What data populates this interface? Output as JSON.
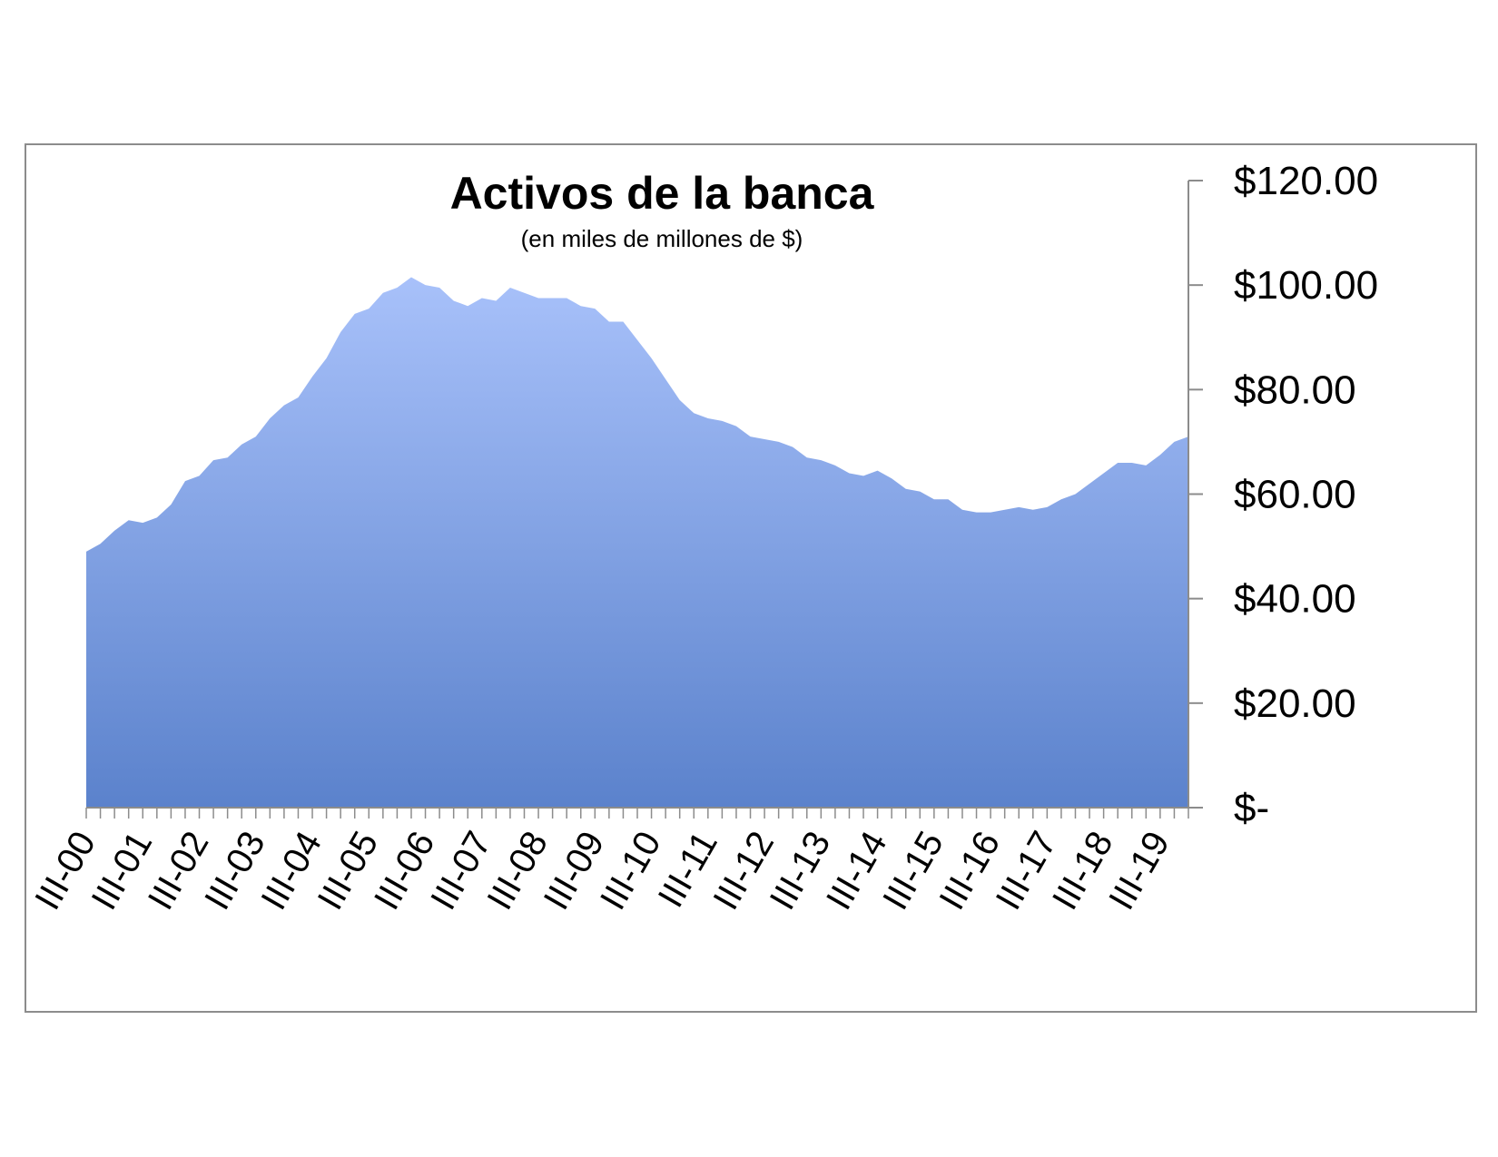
{
  "chart_data": {
    "type": "area",
    "title": "Activos de la banca",
    "subtitle": "(en miles de millones de $)",
    "ylim": [
      0,
      120
    ],
    "yticks": [
      {
        "value": 0,
        "label": "$-"
      },
      {
        "value": 20,
        "label": "$20.00"
      },
      {
        "value": 40,
        "label": "$40.00"
      },
      {
        "value": 60,
        "label": "$60.00"
      },
      {
        "value": 80,
        "label": "$80.00"
      },
      {
        "value": 100,
        "label": "$100.00"
      },
      {
        "value": 120,
        "label": "$120.00"
      }
    ],
    "y_axis_side": "right",
    "grid": false,
    "legend": "none",
    "x_tick_labels": [
      "III-00",
      "III-01",
      "III-02",
      "III-03",
      "III-04",
      "III-05",
      "III-06",
      "III-07",
      "III-08",
      "III-09",
      "III-10",
      "III-11",
      "III-12",
      "III-13",
      "III-14",
      "III-15",
      "III-16",
      "III-17",
      "III-18",
      "III-19"
    ],
    "values": [
      49.0,
      50.5,
      53.0,
      55.0,
      54.5,
      55.5,
      58.0,
      62.5,
      63.5,
      66.5,
      67.0,
      69.5,
      71.0,
      74.5,
      77.0,
      78.5,
      82.5,
      86.0,
      91.0,
      94.5,
      95.5,
      98.5,
      99.5,
      101.5,
      100.0,
      99.5,
      97.0,
      96.0,
      97.5,
      97.0,
      99.5,
      98.5,
      97.5,
      97.5,
      97.5,
      96.0,
      95.5,
      93.0,
      93.0,
      89.5,
      86.0,
      82.0,
      78.0,
      75.5,
      74.5,
      74.0,
      73.0,
      71.0,
      70.5,
      70.0,
      69.0,
      67.0,
      66.5,
      65.5,
      64.0,
      63.5,
      64.5,
      63.0,
      61.0,
      60.5,
      59.0,
      59.0,
      57.0,
      56.5,
      56.5,
      57.0,
      57.5,
      57.0,
      57.5,
      59.0,
      60.0,
      62.0,
      64.0,
      66.0,
      66.0,
      65.5,
      67.5,
      70.0,
      71.0
    ],
    "colors": {
      "area_top": "#a8c1fa",
      "area_bottom": "#5b82cc",
      "axis": "#8c8c8c",
      "frame": "#8c8c8c"
    }
  }
}
